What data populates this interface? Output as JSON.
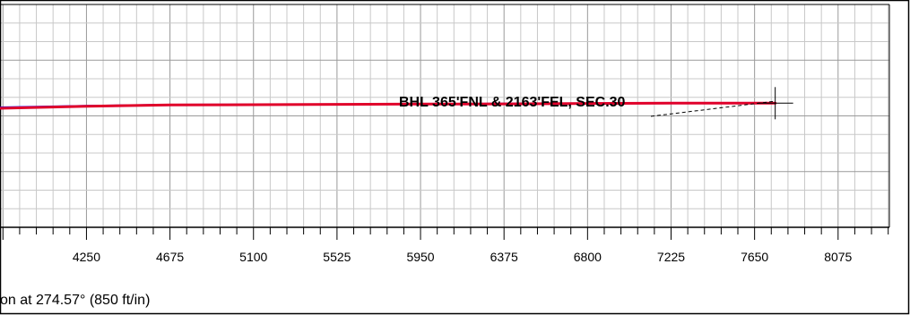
{
  "chart_data": {
    "type": "line",
    "xlabel": "on at 274.57° (850 ft/in)",
    "xlim": [
      3810,
      8336
    ],
    "ylim": [
      0,
      1
    ],
    "x_ticks": [
      4250,
      4675,
      5100,
      5525,
      5950,
      6375,
      6800,
      7225,
      7650,
      8075
    ],
    "grid": true,
    "series": [
      {
        "color": "#0000ff",
        "points": [
          [
            3810,
            0.538
          ],
          [
            4250,
            0.545
          ],
          [
            4675,
            0.55
          ],
          [
            5100,
            0.551
          ],
          [
            5525,
            0.552
          ],
          [
            5950,
            0.553
          ],
          [
            6375,
            0.555
          ],
          [
            6800,
            0.556
          ],
          [
            7225,
            0.557
          ],
          [
            7650,
            0.558
          ],
          [
            7755,
            0.557
          ]
        ]
      },
      {
        "color": "#e0002a",
        "points": [
          [
            3810,
            0.534
          ],
          [
            4250,
            0.543
          ],
          [
            4675,
            0.549
          ],
          [
            5100,
            0.55
          ],
          [
            5525,
            0.552
          ],
          [
            5950,
            0.553
          ],
          [
            6375,
            0.554
          ],
          [
            6800,
            0.556
          ],
          [
            7225,
            0.557
          ],
          [
            7650,
            0.557
          ],
          [
            7755,
            0.557
          ]
        ]
      }
    ],
    "target": {
      "x": 7755,
      "y": 0.557
    },
    "annotations": [
      {
        "text": "BHL 365'FNL & 2163'FEL, SEC.30",
        "x": 7755,
        "y": 0.557
      }
    ]
  }
}
